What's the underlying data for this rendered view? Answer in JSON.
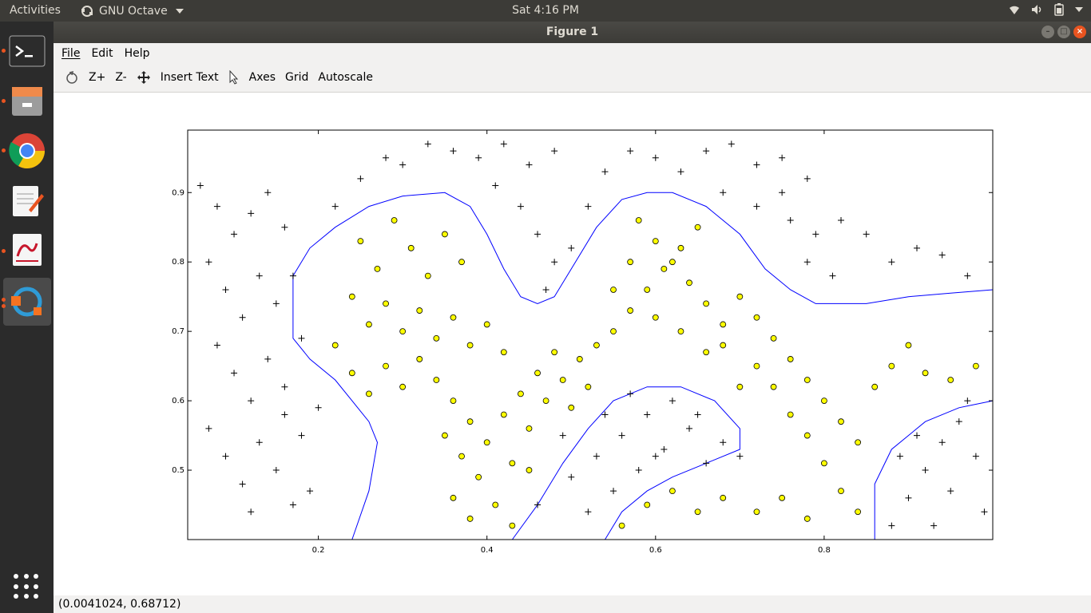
{
  "topbar": {
    "activities": "Activities",
    "app_name": "GNU Octave",
    "clock": "Sat  4:16 PM"
  },
  "window": {
    "title": "Figure 1"
  },
  "menu": {
    "file": "File",
    "edit": "Edit",
    "help": "Help"
  },
  "toolbar": {
    "zoom_in": "Z+",
    "zoom_out": "Z-",
    "insert_text": "Insert Text",
    "axes": "Axes",
    "grid": "Grid",
    "autoscale": "Autoscale"
  },
  "statusbar": {
    "coords": "(0.0041024, 0.68712)"
  },
  "colors": {
    "positive": "#ffff00",
    "negative": "#000000",
    "boundary": "#0000ff"
  },
  "chart_data": {
    "type": "scatter",
    "title": "",
    "xlabel": "",
    "ylabel": "",
    "xlim": [
      0.045,
      1.0
    ],
    "ylim": [
      0.4,
      0.99
    ],
    "x_ticks": [
      "0.2",
      "0.4",
      "0.6",
      "0.8"
    ],
    "y_ticks": [
      "0.5",
      "0.6",
      "0.7",
      "0.8",
      "0.9"
    ],
    "grid": false,
    "series": [
      {
        "marker": "+",
        "points": [
          [
            0.06,
            0.91
          ],
          [
            0.08,
            0.88
          ],
          [
            0.1,
            0.84
          ],
          [
            0.12,
            0.87
          ],
          [
            0.14,
            0.9
          ],
          [
            0.16,
            0.85
          ],
          [
            0.07,
            0.8
          ],
          [
            0.09,
            0.76
          ],
          [
            0.11,
            0.72
          ],
          [
            0.13,
            0.78
          ],
          [
            0.15,
            0.74
          ],
          [
            0.08,
            0.68
          ],
          [
            0.1,
            0.64
          ],
          [
            0.12,
            0.6
          ],
          [
            0.14,
            0.66
          ],
          [
            0.16,
            0.62
          ],
          [
            0.07,
            0.56
          ],
          [
            0.09,
            0.52
          ],
          [
            0.11,
            0.48
          ],
          [
            0.13,
            0.54
          ],
          [
            0.15,
            0.5
          ],
          [
            0.17,
            0.45
          ],
          [
            0.19,
            0.47
          ],
          [
            0.18,
            0.55
          ],
          [
            0.2,
            0.59
          ],
          [
            0.12,
            0.44
          ],
          [
            0.22,
            0.88
          ],
          [
            0.25,
            0.92
          ],
          [
            0.28,
            0.95
          ],
          [
            0.3,
            0.94
          ],
          [
            0.33,
            0.97
          ],
          [
            0.36,
            0.96
          ],
          [
            0.39,
            0.95
          ],
          [
            0.42,
            0.97
          ],
          [
            0.45,
            0.94
          ],
          [
            0.48,
            0.96
          ],
          [
            0.41,
            0.91
          ],
          [
            0.44,
            0.88
          ],
          [
            0.46,
            0.84
          ],
          [
            0.48,
            0.8
          ],
          [
            0.47,
            0.76
          ],
          [
            0.5,
            0.82
          ],
          [
            0.52,
            0.88
          ],
          [
            0.54,
            0.93
          ],
          [
            0.57,
            0.96
          ],
          [
            0.6,
            0.95
          ],
          [
            0.63,
            0.93
          ],
          [
            0.66,
            0.96
          ],
          [
            0.69,
            0.97
          ],
          [
            0.72,
            0.94
          ],
          [
            0.75,
            0.95
          ],
          [
            0.78,
            0.92
          ],
          [
            0.72,
            0.88
          ],
          [
            0.76,
            0.86
          ],
          [
            0.79,
            0.84
          ],
          [
            0.82,
            0.86
          ],
          [
            0.85,
            0.84
          ],
          [
            0.78,
            0.8
          ],
          [
            0.81,
            0.78
          ],
          [
            0.88,
            0.8
          ],
          [
            0.91,
            0.82
          ],
          [
            0.94,
            0.81
          ],
          [
            0.97,
            0.78
          ],
          [
            0.75,
            0.9
          ],
          [
            0.68,
            0.9
          ],
          [
            0.17,
            0.78
          ],
          [
            0.18,
            0.69
          ],
          [
            0.16,
            0.58
          ],
          [
            0.46,
            0.45
          ],
          [
            0.5,
            0.49
          ],
          [
            0.53,
            0.52
          ],
          [
            0.56,
            0.55
          ],
          [
            0.59,
            0.58
          ],
          [
            0.62,
            0.6
          ],
          [
            0.65,
            0.58
          ],
          [
            0.68,
            0.54
          ],
          [
            0.52,
            0.44
          ],
          [
            0.55,
            0.47
          ],
          [
            0.58,
            0.5
          ],
          [
            0.61,
            0.53
          ],
          [
            0.64,
            0.56
          ],
          [
            0.49,
            0.55
          ],
          [
            0.54,
            0.58
          ],
          [
            0.57,
            0.61
          ],
          [
            0.6,
            0.52
          ],
          [
            0.66,
            0.51
          ],
          [
            0.7,
            0.52
          ],
          [
            0.88,
            0.42
          ],
          [
            0.9,
            0.46
          ],
          [
            0.92,
            0.5
          ],
          [
            0.94,
            0.54
          ],
          [
            0.96,
            0.57
          ],
          [
            0.98,
            0.52
          ],
          [
            0.99,
            0.44
          ],
          [
            0.91,
            0.55
          ],
          [
            0.95,
            0.47
          ],
          [
            0.97,
            0.6
          ],
          [
            0.89,
            0.52
          ],
          [
            0.93,
            0.42
          ]
        ]
      },
      {
        "marker": "o",
        "points": [
          [
            0.25,
            0.83
          ],
          [
            0.27,
            0.79
          ],
          [
            0.29,
            0.86
          ],
          [
            0.31,
            0.82
          ],
          [
            0.33,
            0.78
          ],
          [
            0.35,
            0.84
          ],
          [
            0.37,
            0.8
          ],
          [
            0.24,
            0.75
          ],
          [
            0.26,
            0.71
          ],
          [
            0.28,
            0.74
          ],
          [
            0.3,
            0.7
          ],
          [
            0.32,
            0.73
          ],
          [
            0.34,
            0.69
          ],
          [
            0.36,
            0.72
          ],
          [
            0.38,
            0.68
          ],
          [
            0.4,
            0.71
          ],
          [
            0.42,
            0.67
          ],
          [
            0.22,
            0.68
          ],
          [
            0.24,
            0.64
          ],
          [
            0.26,
            0.61
          ],
          [
            0.28,
            0.65
          ],
          [
            0.3,
            0.62
          ],
          [
            0.32,
            0.66
          ],
          [
            0.34,
            0.63
          ],
          [
            0.36,
            0.6
          ],
          [
            0.38,
            0.57
          ],
          [
            0.4,
            0.54
          ],
          [
            0.42,
            0.58
          ],
          [
            0.44,
            0.61
          ],
          [
            0.46,
            0.64
          ],
          [
            0.48,
            0.67
          ],
          [
            0.35,
            0.55
          ],
          [
            0.37,
            0.52
          ],
          [
            0.39,
            0.49
          ],
          [
            0.36,
            0.46
          ],
          [
            0.38,
            0.43
          ],
          [
            0.41,
            0.45
          ],
          [
            0.43,
            0.51
          ],
          [
            0.45,
            0.56
          ],
          [
            0.47,
            0.6
          ],
          [
            0.49,
            0.63
          ],
          [
            0.51,
            0.66
          ],
          [
            0.53,
            0.68
          ],
          [
            0.55,
            0.7
          ],
          [
            0.57,
            0.73
          ],
          [
            0.59,
            0.76
          ],
          [
            0.61,
            0.79
          ],
          [
            0.63,
            0.82
          ],
          [
            0.65,
            0.85
          ],
          [
            0.58,
            0.86
          ],
          [
            0.6,
            0.83
          ],
          [
            0.62,
            0.8
          ],
          [
            0.64,
            0.77
          ],
          [
            0.66,
            0.74
          ],
          [
            0.68,
            0.71
          ],
          [
            0.7,
            0.75
          ],
          [
            0.72,
            0.72
          ],
          [
            0.74,
            0.69
          ],
          [
            0.76,
            0.66
          ],
          [
            0.78,
            0.63
          ],
          [
            0.8,
            0.6
          ],
          [
            0.82,
            0.57
          ],
          [
            0.84,
            0.54
          ],
          [
            0.86,
            0.62
          ],
          [
            0.88,
            0.65
          ],
          [
            0.9,
            0.68
          ],
          [
            0.92,
            0.64
          ],
          [
            0.78,
            0.55
          ],
          [
            0.8,
            0.51
          ],
          [
            0.82,
            0.47
          ],
          [
            0.84,
            0.44
          ],
          [
            0.76,
            0.58
          ],
          [
            0.74,
            0.62
          ],
          [
            0.72,
            0.65
          ],
          [
            0.7,
            0.62
          ],
          [
            0.68,
            0.68
          ],
          [
            0.56,
            0.42
          ],
          [
            0.59,
            0.45
          ],
          [
            0.62,
            0.47
          ],
          [
            0.65,
            0.44
          ],
          [
            0.68,
            0.46
          ],
          [
            0.72,
            0.44
          ],
          [
            0.75,
            0.46
          ],
          [
            0.78,
            0.43
          ],
          [
            0.95,
            0.63
          ],
          [
            0.98,
            0.65
          ],
          [
            0.55,
            0.76
          ],
          [
            0.57,
            0.8
          ],
          [
            0.6,
            0.72
          ],
          [
            0.63,
            0.7
          ],
          [
            0.66,
            0.67
          ],
          [
            0.5,
            0.59
          ],
          [
            0.52,
            0.62
          ],
          [
            0.45,
            0.5
          ],
          [
            0.43,
            0.42
          ]
        ]
      }
    ],
    "decision_boundary": [
      [
        [
          0.24,
          0.4
        ],
        [
          0.26,
          0.47
        ],
        [
          0.27,
          0.54
        ],
        [
          0.26,
          0.57
        ],
        [
          0.24,
          0.6
        ],
        [
          0.22,
          0.63
        ],
        [
          0.19,
          0.66
        ],
        [
          0.17,
          0.69
        ],
        [
          0.17,
          0.73
        ],
        [
          0.17,
          0.78
        ],
        [
          0.19,
          0.82
        ],
        [
          0.22,
          0.85
        ],
        [
          0.26,
          0.88
        ],
        [
          0.3,
          0.895
        ],
        [
          0.35,
          0.9
        ],
        [
          0.38,
          0.88
        ],
        [
          0.4,
          0.84
        ],
        [
          0.42,
          0.79
        ],
        [
          0.44,
          0.75
        ],
        [
          0.46,
          0.74
        ],
        [
          0.48,
          0.75
        ],
        [
          0.5,
          0.79
        ],
        [
          0.53,
          0.85
        ],
        [
          0.56,
          0.89
        ],
        [
          0.59,
          0.9
        ],
        [
          0.62,
          0.9
        ],
        [
          0.66,
          0.88
        ],
        [
          0.7,
          0.84
        ],
        [
          0.73,
          0.79
        ],
        [
          0.76,
          0.76
        ],
        [
          0.79,
          0.74
        ],
        [
          0.85,
          0.74
        ],
        [
          0.9,
          0.75
        ],
        [
          0.95,
          0.755
        ],
        [
          1.0,
          0.76
        ]
      ],
      [
        [
          0.43,
          0.4
        ],
        [
          0.46,
          0.45
        ],
        [
          0.49,
          0.51
        ],
        [
          0.52,
          0.56
        ],
        [
          0.55,
          0.6
        ],
        [
          0.59,
          0.62
        ],
        [
          0.63,
          0.62
        ],
        [
          0.67,
          0.6
        ],
        [
          0.7,
          0.56
        ],
        [
          0.7,
          0.53
        ],
        [
          0.66,
          0.51
        ],
        [
          0.62,
          0.49
        ],
        [
          0.59,
          0.47
        ],
        [
          0.56,
          0.44
        ],
        [
          0.54,
          0.4
        ]
      ],
      [
        [
          0.86,
          0.4
        ],
        [
          0.86,
          0.48
        ],
        [
          0.88,
          0.53
        ],
        [
          0.92,
          0.57
        ],
        [
          0.96,
          0.59
        ],
        [
          1.0,
          0.6
        ]
      ]
    ]
  }
}
